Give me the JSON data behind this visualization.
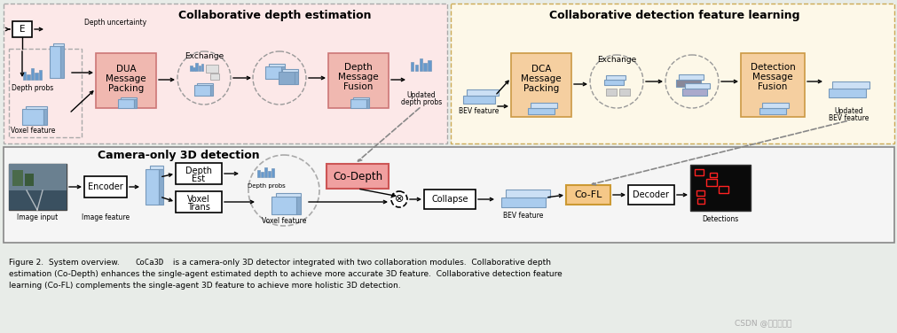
{
  "bg_color": "#e8ece8",
  "top_left_bg": "#fce8e8",
  "top_right_bg": "#fdf8e8",
  "bottom_bg": "#f5f5f5",
  "title_tl": "Collaborative depth estimation",
  "title_tr": "Collaborative detection feature learning",
  "title_bot": "Camera-only 3D detection",
  "caption_line1": "Figure 2.  System overview.  CoCa3D is a camera-only 3D detector integrated with two collaboration modules.  Collaborative depth",
  "caption_line2": "estimation (Co-Depth) enhances the single-agent estimated depth to achieve more accurate 3D feature.  Collaborative detection feature",
  "caption_line3": "learning (Co-FL) complements the single-agent 3D feature to achieve more holistic 3D detection.",
  "watermark": "CSDN @我叫两万块",
  "dua_color": "#f0b8b0",
  "dca_color": "#f5cfa0",
  "codepth_color": "#f0a0a0",
  "cofl_color": "#f5c888",
  "blue_lt": "#aac8e8",
  "blue_dk": "#7799bb",
  "exchange_bg": "#d8d8d8"
}
